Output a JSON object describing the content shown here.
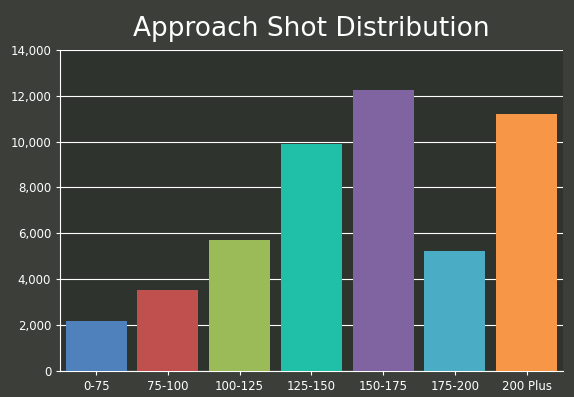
{
  "chart_data": {
    "type": "bar",
    "title": "Approach Shot Distribution",
    "categories": [
      "0-75",
      "75-100",
      "100-125",
      "125-150",
      "150-175",
      "175-200",
      "200 Plus"
    ],
    "values": [
      2200,
      3550,
      5700,
      9900,
      12250,
      5250,
      11200
    ],
    "colors": [
      "#4f81bd",
      "#c0504d",
      "#9bbb59",
      "#1fbfa8",
      "#8064a2",
      "#4bacc6",
      "#f79646"
    ],
    "ylim": [
      0,
      14000
    ],
    "yticks": [
      0,
      {
        "value": 2000,
        "label": "2,000"
      },
      {
        "value": 4000,
        "label": "4,000"
      },
      {
        "value": 6000,
        "label": "6,000"
      },
      {
        "value": 8000,
        "label": "8,000"
      },
      {
        "value": 10000,
        "label": "10,000"
      },
      {
        "value": 12000,
        "label": "12,000"
      },
      {
        "value": 14000,
        "label": "14,000"
      }
    ],
    "grid": true
  }
}
